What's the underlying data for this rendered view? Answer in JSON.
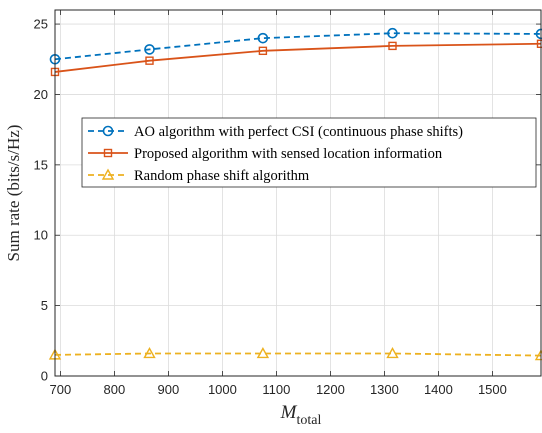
{
  "chart_data": {
    "type": "line",
    "xlabel_main": "M",
    "xlabel_sub": "total",
    "ylabel": "Sum rate (bits/s/Hz)",
    "xlim": [
      690,
      1590
    ],
    "ylim": [
      0,
      26
    ],
    "xticks": [
      700,
      800,
      900,
      1000,
      1100,
      1200,
      1300,
      1400,
      1500
    ],
    "yticks": [
      0,
      5,
      10,
      15,
      20,
      25
    ],
    "grid": true,
    "legend_position": "center-right",
    "series": [
      {
        "name": "AO algorithm with perfect CSI (continuous phase shifts)",
        "color": "#0072BD",
        "line_style": "dashed",
        "marker": "circle",
        "x": [
          690,
          865,
          1075,
          1315,
          1590
        ],
        "y": [
          22.5,
          23.2,
          24.0,
          24.35,
          24.3
        ]
      },
      {
        "name": "Proposed algorithm with sensed location information",
        "color": "#D95319",
        "line_style": "solid",
        "marker": "square",
        "x": [
          690,
          865,
          1075,
          1315,
          1590
        ],
        "y": [
          21.6,
          22.4,
          23.1,
          23.45,
          23.6
        ]
      },
      {
        "name": "Random phase shift algorithm",
        "color": "#EDB120",
        "line_style": "dashed",
        "marker": "triangle",
        "x": [
          690,
          865,
          1075,
          1315,
          1590
        ],
        "y": [
          1.5,
          1.6,
          1.6,
          1.6,
          1.45
        ]
      }
    ]
  }
}
